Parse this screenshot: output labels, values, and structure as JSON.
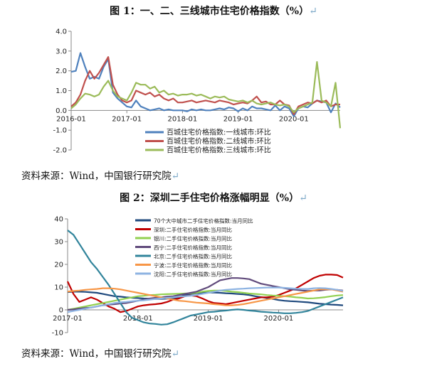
{
  "figure1": {
    "title": "图 1：一、二、三线城市住宅价格指数（%）",
    "source": "资料来源：Wind，中国银行研究院",
    "return_mark": "↵"
  },
  "figure2": {
    "title": "图 2：深圳二手住宅价格涨幅明显（%）",
    "source": "资料来源：Wind，中国银行研究院",
    "return_mark": "↵"
  },
  "chart_data": [
    {
      "type": "line",
      "title": "图 1：一、二、三线城市住宅价格指数（%）",
      "xlabel": "",
      "ylabel": "",
      "ylim": [
        -2.0,
        4.0
      ],
      "yticks": [
        "-2.0",
        "-1.0",
        "0.0",
        "1.0",
        "2.0",
        "3.0",
        "4.0"
      ],
      "xticks": [
        "2016-01",
        "2017-01",
        "2018-01",
        "2019-01",
        "2020-01"
      ],
      "x_start": "2016-01",
      "legend_position": "bottom",
      "grid": false,
      "series": [
        {
          "name": "百城住宅价格指数:一线城市:环比",
          "color": "#4f81bd",
          "values": [
            1.95,
            2.0,
            2.9,
            2.2,
            1.6,
            1.7,
            1.6,
            2.2,
            2.6,
            0.9,
            0.6,
            0.4,
            0.2,
            0.15,
            0.5,
            0.2,
            0.1,
            0.0,
            0.05,
            0.1,
            0.0,
            0.05,
            0.0,
            0.0,
            0.0,
            -0.05,
            0.05,
            0.0,
            0.05,
            0.0,
            0.0,
            0.05,
            0.1,
            0.05,
            0.15,
            0.1,
            -0.05,
            0.1,
            0.0,
            0.2,
            0.1,
            0.1,
            0.05,
            0.0,
            0.25,
            0.0,
            0.2,
            0.1,
            -0.3,
            0.1,
            0.2,
            0.15,
            0.35,
            0.5,
            0.45,
            0.4,
            -0.1,
            0.35,
            0.15
          ]
        },
        {
          "name": "百城住宅价格指数:二线城市:环比",
          "color": "#c0504d",
          "values": [
            0.2,
            0.4,
            0.8,
            1.5,
            2.0,
            1.6,
            1.9,
            2.3,
            2.7,
            1.3,
            0.8,
            0.5,
            0.4,
            0.5,
            1.0,
            0.9,
            0.8,
            0.9,
            0.7,
            0.8,
            0.6,
            0.5,
            0.6,
            0.4,
            0.4,
            0.45,
            0.5,
            0.4,
            0.45,
            0.5,
            0.45,
            0.4,
            0.5,
            0.45,
            0.4,
            0.3,
            0.35,
            0.4,
            0.35,
            0.5,
            0.7,
            0.4,
            0.45,
            0.3,
            0.3,
            0.5,
            0.3,
            0.25,
            -0.2,
            0.2,
            0.3,
            0.4,
            0.35,
            0.5,
            0.4,
            0.5,
            0.2,
            0.3,
            0.3
          ]
        },
        {
          "name": "百城住宅价格指数:三线城市:环比",
          "color": "#9bbb59",
          "values": [
            0.1,
            0.3,
            0.6,
            0.85,
            0.8,
            0.7,
            0.8,
            1.2,
            1.5,
            1.0,
            0.7,
            0.6,
            0.5,
            0.9,
            1.4,
            1.3,
            1.3,
            1.1,
            1.2,
            0.9,
            1.0,
            0.8,
            0.85,
            0.75,
            0.8,
            0.8,
            0.85,
            0.75,
            0.8,
            0.7,
            0.6,
            0.7,
            0.65,
            0.7,
            0.55,
            0.5,
            0.45,
            0.5,
            0.4,
            0.5,
            0.35,
            0.3,
            0.35,
            0.4,
            0.3,
            0.25,
            0.3,
            0.2,
            -0.1,
            0.1,
            0.2,
            0.3,
            0.4,
            2.45,
            0.5,
            0.4,
            0.2,
            1.4,
            -0.9
          ]
        }
      ]
    },
    {
      "type": "line",
      "title": "图 2：深圳二手住宅价格涨幅明显（%）",
      "xlabel": "",
      "ylabel": "",
      "ylim": [
        -10,
        40
      ],
      "yticks": [
        "-10",
        "0",
        "10",
        "20",
        "30",
        "40"
      ],
      "xticks": [
        "2017-01",
        "2018-01",
        "2019-01",
        "2020-01"
      ],
      "x_start": "2017-01",
      "legend_position": "top-right",
      "grid": false,
      "series": [
        {
          "name": "70个大中城市二手住宅价格指数:当月同比",
          "color": "#1f497d",
          "values": [
            7.8,
            8.0,
            8.0,
            7.9,
            7.7,
            7.5,
            7.0,
            6.5,
            6.0,
            5.8,
            5.5,
            5.3,
            5.2,
            5.0,
            4.9,
            4.8,
            4.8,
            4.9,
            5.0,
            5.5,
            6.5,
            7.0,
            7.3,
            7.5,
            7.6,
            7.6,
            7.5,
            7.3,
            7.2,
            7.0,
            6.8,
            6.5,
            6.0,
            5.6,
            5.2,
            4.8,
            4.3,
            4.0,
            3.8,
            3.7,
            3.5,
            3.3,
            3.0,
            2.7,
            2.5,
            2.3,
            2.2,
            2.0
          ]
        },
        {
          "name": "深圳:二手住宅价格指数:当月同比",
          "color": "#c00000",
          "values": [
            12.5,
            7.0,
            3.5,
            4.5,
            5.5,
            4.5,
            3.0,
            1.5,
            0.5,
            -1.0,
            -0.5,
            0.5,
            1.5,
            2.0,
            2.3,
            2.5,
            2.8,
            3.5,
            4.5,
            5.0,
            6.0,
            6.3,
            6.0,
            5.0,
            3.8,
            3.0,
            2.8,
            2.5,
            3.0,
            3.5,
            4.0,
            4.5,
            5.0,
            5.5,
            5.5,
            5.8,
            6.5,
            7.5,
            8.5,
            9.5,
            11.0,
            12.5,
            14.0,
            15.0,
            15.5,
            15.5,
            15.3,
            14.2
          ]
        },
        {
          "name": "银川:二手住宅价格指数:当月同比",
          "color": "#92d050",
          "values": [
            0.0,
            0.5,
            1.0,
            1.5,
            2.0,
            2.5,
            3.0,
            3.5,
            4.0,
            4.5,
            5.0,
            5.5,
            6.0,
            6.2,
            6.5,
            6.6,
            6.8,
            6.9,
            7.0,
            7.1,
            7.2,
            7.3,
            7.5,
            8.0,
            8.3,
            8.5,
            8.5,
            8.3,
            8.0,
            7.8,
            7.5,
            7.2,
            7.0,
            6.8,
            6.5,
            6.3,
            6.2,
            6.0,
            5.8,
            5.5,
            5.3,
            5.0,
            5.1,
            5.3,
            5.6,
            6.0,
            6.3,
            6.5
          ]
        },
        {
          "name": "西宁:二手住宅价格指数:当月同比",
          "color": "#604a7b",
          "values": [
            0.0,
            0.2,
            0.5,
            0.8,
            1.0,
            1.5,
            2.0,
            2.3,
            2.5,
            2.8,
            3.0,
            3.5,
            4.0,
            4.5,
            5.0,
            5.3,
            5.5,
            5.8,
            6.0,
            6.5,
            7.0,
            7.5,
            8.0,
            9.0,
            10.0,
            11.5,
            13.0,
            13.5,
            14.0,
            14.0,
            13.8,
            13.5,
            12.5,
            11.5,
            11.0,
            10.5,
            10.0,
            9.5,
            9.0,
            8.8,
            8.5,
            8.3,
            8.5,
            8.5,
            8.8,
            9.0,
            8.8,
            8.5
          ]
        },
        {
          "name": "北京:二手住宅价格指数:当月同比",
          "color": "#31849b",
          "values": [
            35.0,
            33.0,
            29.0,
            25.0,
            21.0,
            18.0,
            14.5,
            11.0,
            7.0,
            3.0,
            -1.0,
            -3.5,
            -4.5,
            -5.5,
            -6.0,
            -6.2,
            -6.5,
            -6.3,
            -5.5,
            -4.5,
            -3.5,
            -2.5,
            -2.0,
            -1.5,
            -1.0,
            -0.8,
            -0.5,
            -0.3,
            0.0,
            0.2,
            0.0,
            -0.3,
            -0.5,
            -0.8,
            -1.0,
            -1.2,
            -1.3,
            -1.5,
            -1.5,
            -1.3,
            -1.0,
            -0.5,
            0.5,
            1.5,
            2.5,
            3.5,
            4.5,
            5.5
          ]
        },
        {
          "name": "宁波:二手住宅价格指数:当月同比",
          "color": "#f79646",
          "values": [
            8.0,
            8.3,
            8.5,
            8.8,
            9.0,
            9.2,
            9.5,
            9.5,
            9.3,
            9.0,
            8.5,
            8.0,
            7.5,
            7.0,
            6.5,
            6.0,
            5.5,
            5.0,
            4.5,
            4.0,
            3.8,
            3.5,
            3.2,
            3.0,
            2.8,
            2.5,
            2.3,
            2.0,
            2.0,
            2.2,
            2.5,
            3.0,
            3.5,
            4.0,
            4.5,
            5.0,
            5.5,
            6.0,
            6.5,
            7.0,
            7.5,
            8.0,
            8.5,
            9.0,
            9.0,
            9.0,
            8.5,
            8.0
          ]
        },
        {
          "name": "沈阳:二手住宅价格指数:当月同比",
          "color": "#8db3e2",
          "values": [
            -1.0,
            -0.5,
            0.0,
            0.5,
            1.0,
            1.5,
            2.0,
            2.5,
            3.0,
            3.3,
            3.5,
            3.8,
            4.0,
            4.2,
            4.5,
            4.8,
            5.0,
            5.3,
            5.5,
            5.8,
            6.0,
            6.2,
            6.5,
            7.0,
            7.5,
            8.0,
            8.5,
            8.8,
            9.0,
            9.2,
            9.3,
            9.5,
            9.6,
            9.7,
            9.8,
            9.8,
            9.8,
            9.7,
            9.5,
            9.3,
            9.2,
            9.2,
            9.5,
            9.6,
            9.5,
            9.2,
            8.8,
            8.3
          ]
        }
      ]
    }
  ]
}
